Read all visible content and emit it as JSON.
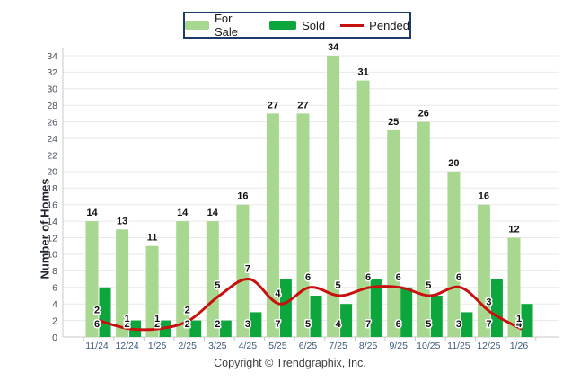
{
  "ylabel": "Number of Homes",
  "footer": "Copyright © Trendgraphix, Inc.",
  "legend": {
    "items": [
      {
        "label": "For Sale",
        "type": "bar",
        "color": "#A8D88F"
      },
      {
        "label": "Sold",
        "type": "bar",
        "color": "#0CA63C"
      },
      {
        "label": "Pended",
        "type": "line",
        "color": "#C8100F"
      }
    ]
  },
  "colors": {
    "for_sale_bar": "#A8D88F",
    "sold_bar": "#0CA63C",
    "pended_line": "#C8100F",
    "gridline": "#e9e9e9",
    "axis_line": "#c8c8c8",
    "value_label": "#111111",
    "y_tick_label": "#454c59",
    "x_tick_label": "#3e5a7a",
    "legend_border": "#1d3b6a"
  },
  "chart_data": {
    "type": "bar",
    "title": "",
    "categories": [
      "11/24",
      "12/24",
      "1/25",
      "2/25",
      "3/25",
      "4/25",
      "5/25",
      "6/25",
      "7/25",
      "8/25",
      "9/25",
      "10/25",
      "11/25",
      "12/25",
      "1/26"
    ],
    "series": [
      {
        "name": "For Sale",
        "type": "bar",
        "color": "#A8D88F",
        "values": [
          14,
          13,
          11,
          14,
          14,
          16,
          27,
          27,
          34,
          31,
          25,
          26,
          20,
          16,
          12
        ]
      },
      {
        "name": "Sold",
        "type": "bar",
        "color": "#0CA63C",
        "values": [
          6,
          2,
          2,
          2,
          2,
          3,
          7,
          5,
          4,
          7,
          6,
          5,
          3,
          7,
          4
        ]
      },
      {
        "name": "Pended",
        "type": "line",
        "color": "#C8100F",
        "values": [
          2,
          1,
          1,
          2,
          5,
          7,
          4,
          6,
          5,
          6,
          6,
          5,
          6,
          3,
          1
        ]
      }
    ],
    "xlabel": "",
    "ylabel": "Number of Homes",
    "ylim": [
      0,
      34
    ],
    "ytick_step": 2,
    "grid": true,
    "legend_position": "top-center",
    "value_labels": true
  }
}
